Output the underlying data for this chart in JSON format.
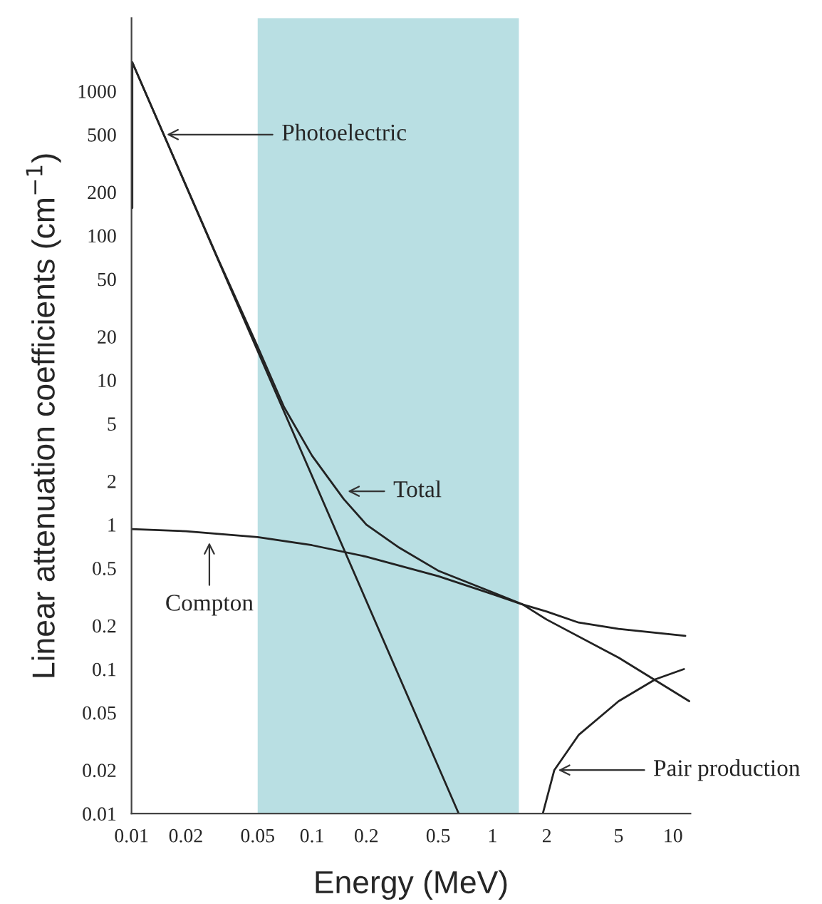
{
  "chart_data": {
    "type": "line",
    "xlabel": "Energy (MeV)",
    "ylabel": "Linear attenuation coefficients (cm$^{−1}$)",
    "log": "xy",
    "grid": false,
    "legend": false,
    "marker": "none",
    "line_style": "solid",
    "xlim": [
      0.01,
      12.5
    ],
    "ylim": [
      0.01,
      3200
    ],
    "xticks": [
      0.01,
      0.02,
      0.05,
      0.1,
      0.2,
      0.5,
      1,
      2,
      5,
      10
    ],
    "yticks": [
      0.01,
      0.02,
      0.05,
      0.1,
      0.2,
      0.5,
      1,
      2,
      5,
      10,
      20,
      50,
      100,
      200,
      500,
      1000
    ],
    "series": [
      {
        "color": "#222222",
        "x": [
          0.0101,
          0.0101,
          0.65
        ],
        "values": [
          155,
          1580,
          0.01
        ]
      },
      {
        "color": "#222222",
        "x": [
          0.0101,
          0.03,
          0.05,
          0.07,
          0.1,
          0.15,
          0.2,
          0.3,
          0.5,
          1,
          1.47,
          2,
          3,
          5,
          11.7
        ],
        "values": [
          1580,
          70,
          17,
          6.5,
          3,
          1.5,
          1.0,
          0.7,
          0.48,
          0.34,
          0.28,
          0.25,
          0.21,
          0.19,
          0.17
        ]
      },
      {
        "color": "#222222",
        "x": [
          0.01,
          0.02,
          0.05,
          0.1,
          0.2,
          0.5,
          1,
          1.47,
          2,
          5,
          12.3
        ],
        "values": [
          0.93,
          0.9,
          0.82,
          0.72,
          0.6,
          0.44,
          0.33,
          0.28,
          0.22,
          0.12,
          0.06
        ]
      },
      {
        "color": "#222222",
        "x": [
          1.9,
          2.2,
          3,
          5,
          8,
          11.5
        ],
        "values": [
          0.01,
          0.02,
          0.035,
          0.06,
          0.085,
          0.1
        ]
      }
    ],
    "bands": [
      {
        "axis": "x",
        "from": 0.05,
        "to": 1.4,
        "color": "#b9dfe3"
      }
    ],
    "annotations": [
      {
        "text": "Photoelectric",
        "x": 0.0149,
        "y": 500
      },
      {
        "text": "Total",
        "x": 0.15,
        "y": 1.7
      },
      {
        "text": "Compton",
        "x": 0.027,
        "y": 0.8
      },
      {
        "text": "Pair production",
        "x": 2.2,
        "y": 0.02
      }
    ]
  }
}
